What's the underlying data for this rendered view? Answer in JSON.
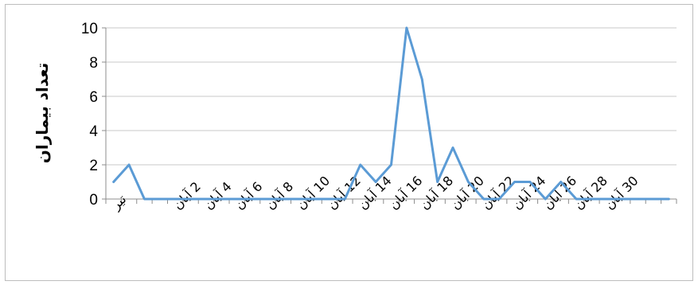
{
  "chart_data": {
    "type": "line",
    "title": "",
    "xlabel": "",
    "ylabel": "تعداد بیماران",
    "ylim": [
      0,
      10
    ],
    "yticks": [
      0,
      2,
      4,
      6,
      8,
      10
    ],
    "grid": true,
    "legend": "none",
    "x": [
      "تیر",
      "",
      "",
      "",
      "2 آبان",
      "",
      "4 آبان",
      "",
      "6 آبان",
      "",
      "8 آبان",
      "",
      "10 آبان",
      "",
      "12 آبان",
      "",
      "14 آبان",
      "",
      "16 آبان",
      "",
      "18 آبان",
      "",
      "20 آبان",
      "",
      "22 آبان",
      "",
      "24 آبان",
      "",
      "26 آبان",
      "",
      "28 آبان",
      "",
      "30 آبان",
      "",
      "",
      "",
      ""
    ],
    "series": [
      {
        "color": "#5b9bd5",
        "values": [
          1,
          2,
          0,
          0,
          0,
          0,
          0,
          0,
          0,
          0,
          0,
          0,
          0,
          0,
          0,
          0,
          2,
          1,
          2,
          10,
          7,
          1,
          3,
          1,
          0,
          0,
          1,
          1,
          0,
          1,
          0,
          0,
          0,
          0,
          0,
          0,
          0
        ]
      }
    ]
  }
}
